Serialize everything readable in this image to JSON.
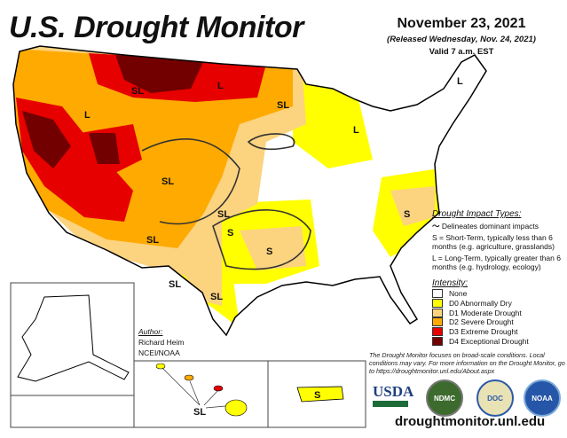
{
  "header": {
    "title": "U.S. Drought Monitor",
    "date": "November 23, 2021",
    "released": "(Released Wednesday, Nov. 24, 2021)",
    "valid": "Valid 7 a.m. EST"
  },
  "impact_types": {
    "heading": "Drought Impact Types:",
    "delineates": "Delineates dominant impacts",
    "short_term": "S = Short-Term, typically less than 6 months (e.g. agriculture, grasslands)",
    "long_term": "L = Long-Term, typically greater than 6 months (e.g. hydrology, ecology)"
  },
  "intensity": {
    "heading": "Intensity:",
    "items": [
      {
        "label": "None",
        "color": "#ffffff"
      },
      {
        "label": "D0 Abnormally Dry",
        "color": "#ffff00"
      },
      {
        "label": "D1 Moderate Drought",
        "color": "#fcd37f"
      },
      {
        "label": "D2 Severe Drought",
        "color": "#ffaa00"
      },
      {
        "label": "D3 Extreme Drought",
        "color": "#e60000"
      },
      {
        "label": "D4 Exceptional Drought",
        "color": "#730000"
      }
    ]
  },
  "footnote": "The Drought Monitor focuses on broad-scale conditions. Local conditions may vary. For more information on the Drought Monitor, go to https://droughtmonitor.unl.edu/About.aspx",
  "author": {
    "heading": "Author:",
    "name": "Richard Heim",
    "org": "NCEI/NOAA"
  },
  "logos": [
    "USDA",
    "NDMC",
    "DOC",
    "NOAA"
  ],
  "url": "droughtmonitor.unl.edu",
  "map_labels": {
    "sl": "SL",
    "s": "S",
    "l": "L"
  }
}
